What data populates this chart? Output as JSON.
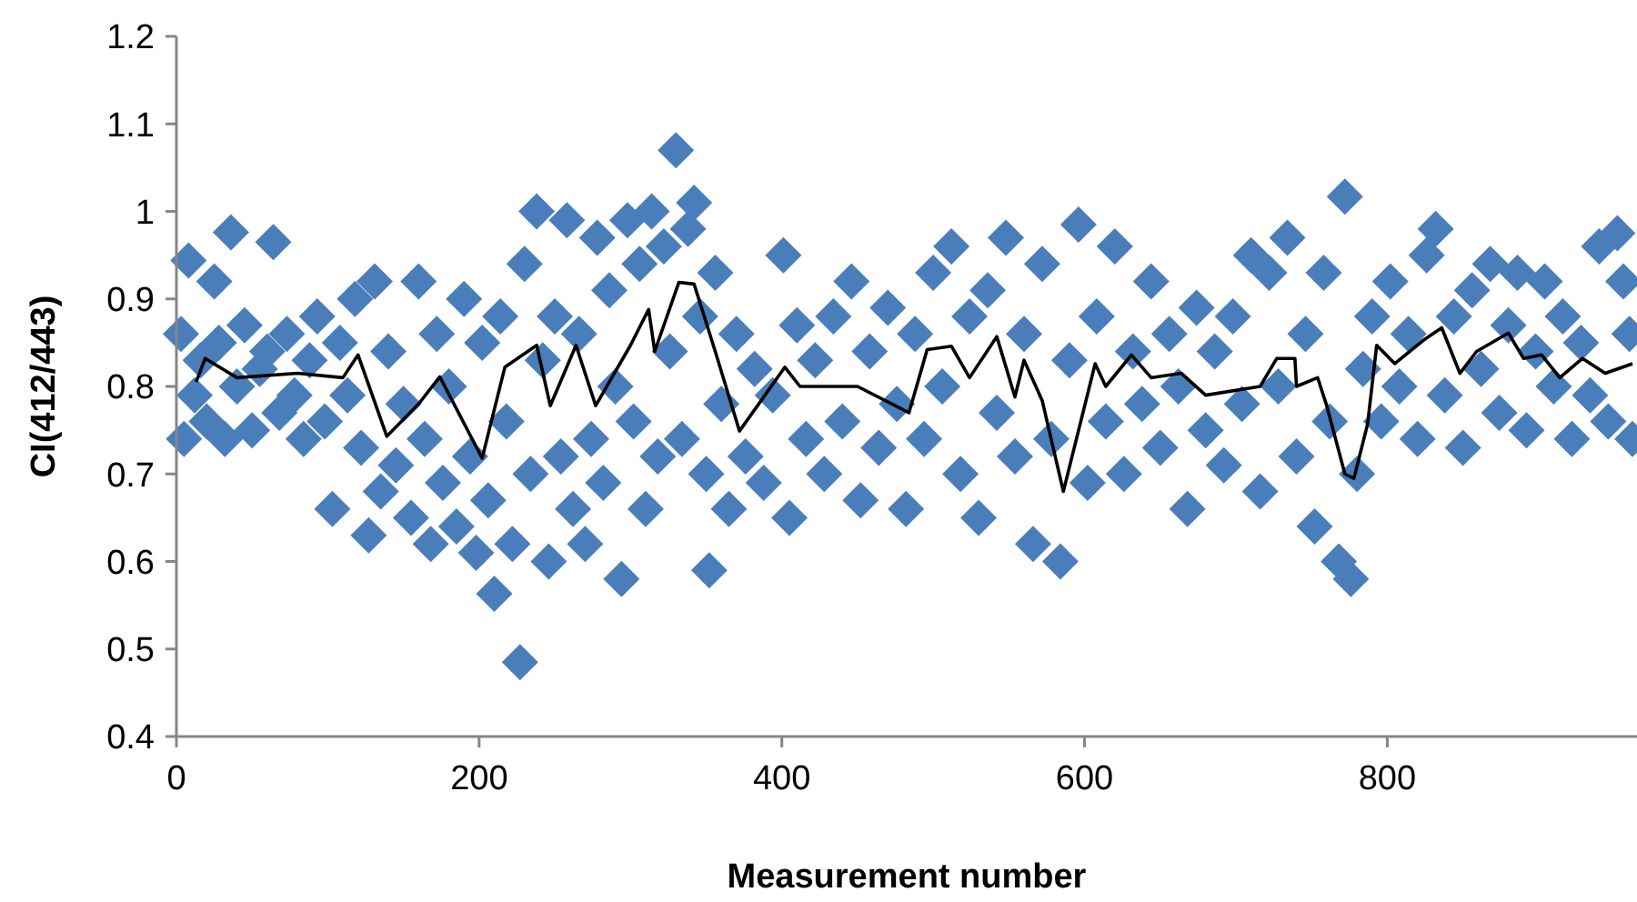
{
  "chart_data": {
    "type": "scatter",
    "xlabel": "Measurement number",
    "ylabel": "CI(412/443)",
    "xlim": [
      0,
      965
    ],
    "ylim": [
      0.4,
      1.2
    ],
    "xticks": [
      0,
      200,
      400,
      600,
      800
    ],
    "yticks": [
      0.4,
      0.5,
      0.6,
      0.7,
      0.8,
      0.9,
      1,
      1.1,
      1.2
    ],
    "grid": false,
    "series": [
      {
        "color": "#4a7ebb",
        "marker": "diamond",
        "x": [
          3,
          5,
          8,
          12,
          16,
          20,
          25,
          28,
          32,
          36,
          40,
          45,
          50,
          55,
          60,
          64,
          68,
          73,
          78,
          84,
          88,
          93,
          98,
          103,
          108,
          113,
          118,
          122,
          127,
          131,
          135,
          140,
          145,
          150,
          155,
          160,
          164,
          168,
          172,
          176,
          180,
          185,
          190,
          194,
          198,
          202,
          206,
          210,
          214,
          218,
          222,
          227,
          230,
          234,
          238,
          242,
          246,
          250,
          254,
          258,
          262,
          266,
          270,
          274,
          278,
          282,
          286,
          290,
          294,
          298,
          302,
          306,
          310,
          314,
          318,
          322,
          326,
          330,
          334,
          338,
          342,
          346,
          350,
          352,
          356,
          360,
          365,
          370,
          376,
          382,
          388,
          394,
          401,
          405,
          410,
          416,
          422,
          428,
          434,
          440,
          446,
          452,
          458,
          464,
          470,
          476,
          482,
          488,
          494,
          500,
          506,
          512,
          518,
          524,
          530,
          536,
          542,
          548,
          554,
          560,
          566,
          572,
          578,
          584,
          590,
          596,
          602,
          608,
          614,
          620,
          626,
          632,
          638,
          644,
          650,
          656,
          662,
          668,
          674,
          680,
          686,
          692,
          698,
          704,
          710,
          716,
          722,
          728,
          734,
          740,
          746,
          752,
          758,
          762,
          768,
          772,
          776,
          780,
          784,
          790,
          796,
          802,
          808,
          814,
          820,
          826,
          832,
          838,
          844,
          850,
          856,
          862,
          868,
          874,
          880,
          886,
          892,
          898,
          904,
          910,
          916,
          922,
          928,
          934,
          940,
          946,
          952,
          956,
          960,
          962
        ],
        "values": [
          0.86,
          0.74,
          0.944,
          0.79,
          0.83,
          0.76,
          0.92,
          0.85,
          0.74,
          0.976,
          0.8,
          0.87,
          0.75,
          0.82,
          0.84,
          0.965,
          0.77,
          0.86,
          0.79,
          0.74,
          0.83,
          0.88,
          0.76,
          0.66,
          0.85,
          0.79,
          0.9,
          0.73,
          0.63,
          0.92,
          0.68,
          0.84,
          0.71,
          0.78,
          0.65,
          0.92,
          0.74,
          0.62,
          0.86,
          0.69,
          0.8,
          0.64,
          0.9,
          0.72,
          0.61,
          0.85,
          0.67,
          0.563,
          0.88,
          0.76,
          0.62,
          0.485,
          0.94,
          0.7,
          1.0,
          0.83,
          0.6,
          0.88,
          0.72,
          0.99,
          0.66,
          0.86,
          0.62,
          0.74,
          0.97,
          0.69,
          0.91,
          0.8,
          0.58,
          0.99,
          0.76,
          0.94,
          0.66,
          1.0,
          0.72,
          0.96,
          0.84,
          1.07,
          0.74,
          0.98,
          1.01,
          0.88,
          0.7,
          0.59,
          0.93,
          0.78,
          0.66,
          0.86,
          0.72,
          0.82,
          0.69,
          0.79,
          0.95,
          0.65,
          0.87,
          0.74,
          0.83,
          0.7,
          0.88,
          0.76,
          0.92,
          0.67,
          0.84,
          0.73,
          0.89,
          0.78,
          0.66,
          0.86,
          0.74,
          0.93,
          0.8,
          0.96,
          0.7,
          0.88,
          0.65,
          0.91,
          0.77,
          0.97,
          0.72,
          0.86,
          0.62,
          0.94,
          0.74,
          0.6,
          0.83,
          0.985,
          0.69,
          0.88,
          0.76,
          0.96,
          0.7,
          0.84,
          0.78,
          0.92,
          0.73,
          0.86,
          0.8,
          0.66,
          0.89,
          0.75,
          0.84,
          0.71,
          0.88,
          0.78,
          0.95,
          0.68,
          0.93,
          0.8,
          0.97,
          0.72,
          0.86,
          0.64,
          0.93,
          0.76,
          0.6,
          1.017,
          0.58,
          0.7,
          0.82,
          0.88,
          0.76,
          0.92,
          0.8,
          0.86,
          0.74,
          0.95,
          0.98,
          0.79,
          0.88,
          0.73,
          0.91,
          0.82,
          0.94,
          0.77,
          0.87,
          0.93,
          0.75,
          0.84,
          0.92,
          0.8,
          0.88,
          0.74,
          0.85,
          0.79,
          0.96,
          0.76,
          0.975,
          0.92,
          0.86,
          0.74
        ]
      },
      {
        "type": "line",
        "color": "#000000",
        "marker": "none",
        "line_style": "solid",
        "x": [
          13,
          19,
          40,
          80,
          110,
          120,
          139,
          160,
          174,
          202,
          217,
          238,
          247,
          264,
          277,
          300,
          312,
          316,
          332,
          342,
          356,
          372,
          402,
          412,
          450,
          484,
          496,
          512,
          524,
          542,
          554,
          560,
          572,
          586,
          607,
          614,
          631,
          644,
          664,
          680,
          716,
          727,
          739,
          740,
          754,
          760,
          772,
          778,
          787,
          793,
          805,
          824,
          836,
          848,
          859,
          880,
          890,
          902,
          914,
          929,
          944,
          962
        ],
        "values": [
          0.805,
          0.832,
          0.81,
          0.815,
          0.81,
          0.836,
          0.743,
          0.78,
          0.811,
          0.718,
          0.822,
          0.847,
          0.778,
          0.847,
          0.778,
          0.847,
          0.888,
          0.84,
          0.919,
          0.917,
          0.84,
          0.749,
          0.822,
          0.8,
          0.8,
          0.77,
          0.842,
          0.846,
          0.81,
          0.857,
          0.788,
          0.83,
          0.784,
          0.68,
          0.826,
          0.8,
          0.836,
          0.81,
          0.815,
          0.79,
          0.8,
          0.832,
          0.832,
          0.8,
          0.81,
          0.778,
          0.7,
          0.695,
          0.757,
          0.847,
          0.826,
          0.853,
          0.867,
          0.815,
          0.84,
          0.861,
          0.832,
          0.836,
          0.81,
          0.832,
          0.815,
          0.826
        ]
      }
    ]
  }
}
